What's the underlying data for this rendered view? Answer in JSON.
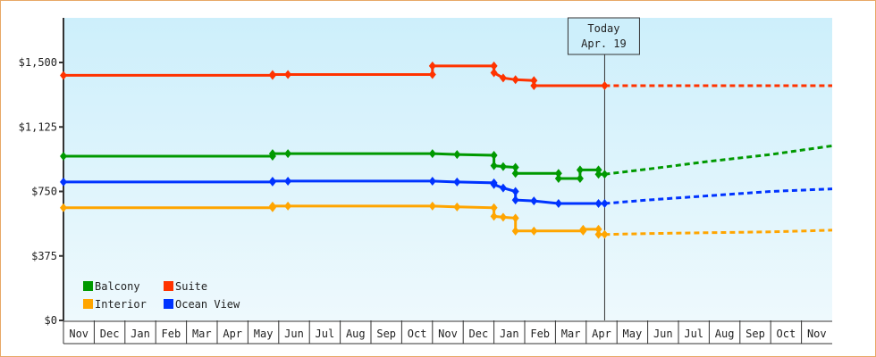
{
  "chart_data": {
    "type": "line",
    "title": "",
    "xlabel": "",
    "ylabel": "",
    "ylim": [
      0,
      1750
    ],
    "y_ticks": [
      {
        "value": 0,
        "label": "$0"
      },
      {
        "value": 375,
        "label": "$375"
      },
      {
        "value": 750,
        "label": "$750"
      },
      {
        "value": 1125,
        "label": "$1,125"
      },
      {
        "value": 1500,
        "label": "$1,500"
      }
    ],
    "x_ticks": [
      "Nov",
      "Dec",
      "Jan",
      "Feb",
      "Mar",
      "Apr",
      "May",
      "Jun",
      "Jul",
      "Aug",
      "Sep",
      "Oct",
      "Nov",
      "Dec",
      "Jan",
      "Feb",
      "Mar",
      "Apr",
      "May",
      "Jun",
      "Jul",
      "Aug",
      "Sep",
      "Oct",
      "Nov"
    ],
    "today_marker": {
      "line1": "Today",
      "line2": "Apr. 19",
      "month_index": 17.6
    },
    "legend": [
      {
        "name": "Balcony",
        "color": "#009900"
      },
      {
        "name": "Suite",
        "color": "#ff3300"
      },
      {
        "name": "Interior",
        "color": "#ffa500"
      },
      {
        "name": "Ocean View",
        "color": "#0033ff"
      }
    ],
    "series": [
      {
        "name": "Suite",
        "color": "#ff3300",
        "history": [
          [
            0,
            1425
          ],
          [
            6.8,
            1425
          ],
          [
            6.8,
            1430
          ],
          [
            7.3,
            1430
          ],
          [
            12,
            1430
          ],
          [
            12,
            1480
          ],
          [
            14,
            1480
          ],
          [
            14,
            1440
          ],
          [
            14.3,
            1410
          ],
          [
            14.7,
            1400
          ],
          [
            15.3,
            1395
          ],
          [
            15.3,
            1365
          ],
          [
            17.6,
            1365
          ]
        ],
        "forecast": [
          [
            17.6,
            1365
          ],
          [
            25,
            1365
          ]
        ]
      },
      {
        "name": "Balcony",
        "color": "#009900",
        "history": [
          [
            0,
            955
          ],
          [
            6.8,
            955
          ],
          [
            6.8,
            970
          ],
          [
            7.3,
            970
          ],
          [
            12,
            970
          ],
          [
            12.8,
            965
          ],
          [
            14,
            960
          ],
          [
            14,
            900
          ],
          [
            14.3,
            895
          ],
          [
            14.7,
            890
          ],
          [
            14.7,
            855
          ],
          [
            16.1,
            855
          ],
          [
            16.1,
            825
          ],
          [
            16.8,
            825
          ],
          [
            16.8,
            875
          ],
          [
            17.4,
            875
          ],
          [
            17.4,
            850
          ],
          [
            17.6,
            850
          ]
        ],
        "forecast": [
          [
            17.6,
            850
          ],
          [
            19,
            880
          ],
          [
            21,
            925
          ],
          [
            23,
            965
          ],
          [
            25,
            1015
          ]
        ]
      },
      {
        "name": "Ocean View",
        "color": "#0033ff",
        "history": [
          [
            0,
            805
          ],
          [
            6.8,
            805
          ],
          [
            6.8,
            810
          ],
          [
            7.3,
            810
          ],
          [
            12,
            810
          ],
          [
            12.8,
            805
          ],
          [
            14,
            800
          ],
          [
            14,
            790
          ],
          [
            14.3,
            770
          ],
          [
            14.7,
            750
          ],
          [
            14.7,
            700
          ],
          [
            15.3,
            695
          ],
          [
            16.1,
            680
          ],
          [
            17.4,
            680
          ],
          [
            17.6,
            680
          ]
        ],
        "forecast": [
          [
            17.6,
            680
          ],
          [
            19,
            700
          ],
          [
            21,
            725
          ],
          [
            23,
            750
          ],
          [
            25,
            765
          ]
        ]
      },
      {
        "name": "Interior",
        "color": "#ffa500",
        "history": [
          [
            0,
            655
          ],
          [
            6.8,
            655
          ],
          [
            6.8,
            665
          ],
          [
            7.3,
            665
          ],
          [
            12,
            665
          ],
          [
            12.8,
            660
          ],
          [
            14,
            655
          ],
          [
            14,
            605
          ],
          [
            14.3,
            600
          ],
          [
            14.7,
            595
          ],
          [
            14.7,
            520
          ],
          [
            15.3,
            520
          ],
          [
            16.9,
            520
          ],
          [
            16.9,
            530
          ],
          [
            17.4,
            530
          ],
          [
            17.4,
            500
          ],
          [
            17.6,
            500
          ]
        ],
        "forecast": [
          [
            17.6,
            500
          ],
          [
            19,
            505
          ],
          [
            21,
            510
          ],
          [
            23,
            515
          ],
          [
            25,
            525
          ]
        ]
      }
    ]
  }
}
